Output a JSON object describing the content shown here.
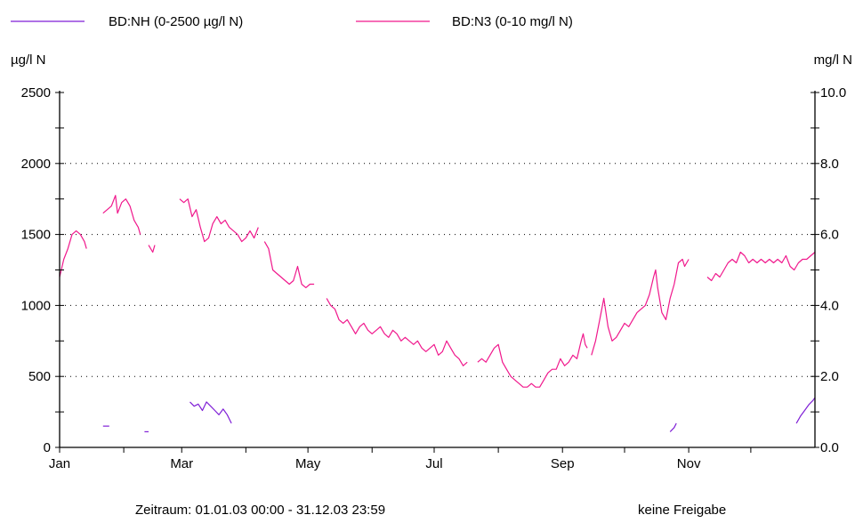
{
  "chart_data": {
    "type": "line",
    "legend": [
      {
        "label": "BD:NH (0-2500 µg/l N)",
        "color": "#7f1fd6"
      },
      {
        "label": "BD:N3 (0-10 mg/l N)",
        "color": "#f0188c"
      }
    ],
    "left_axis": {
      "unit": "µg/l N",
      "range": [
        0,
        2500
      ],
      "tick_labels": [
        "0",
        "500",
        "1000",
        "1500",
        "2000",
        "2500"
      ]
    },
    "right_axis": {
      "unit": "mg/l N",
      "range": [
        0,
        10
      ],
      "tick_labels": [
        "0.0",
        "2.0",
        "4.0",
        "6.0",
        "8.0",
        "10.0"
      ]
    },
    "x_axis": {
      "range": [
        1,
        366
      ],
      "ticks": [
        {
          "day": 1,
          "label": "Jan"
        },
        {
          "day": 60,
          "label": "Mar"
        },
        {
          "day": 121,
          "label": "May"
        },
        {
          "day": 182,
          "label": "Jul"
        },
        {
          "day": 244,
          "label": "Sep"
        },
        {
          "day": 305,
          "label": "Nov"
        }
      ]
    },
    "grid": "dotted horizontal",
    "series": [
      {
        "name": "BD:N3 (0-10 mg/l N)",
        "axis": "right",
        "color": "#f0188c",
        "segments": [
          [
            [
              1,
              4.8
            ],
            [
              3,
              5.3
            ],
            [
              5,
              5.6
            ],
            [
              7,
              6.0
            ],
            [
              9,
              6.1
            ],
            [
              11,
              6.0
            ],
            [
              13,
              5.8
            ],
            [
              14,
              5.6
            ]
          ],
          [
            [
              22,
              6.6
            ],
            [
              24,
              6.7
            ],
            [
              26,
              6.8
            ],
            [
              28,
              7.1
            ],
            [
              29,
              6.6
            ],
            [
              31,
              6.9
            ],
            [
              33,
              7.0
            ],
            [
              35,
              6.8
            ],
            [
              37,
              6.4
            ],
            [
              39,
              6.2
            ],
            [
              40,
              6.0
            ]
          ],
          [
            [
              44,
              5.7
            ],
            [
              46,
              5.5
            ],
            [
              47,
              5.7
            ]
          ],
          [
            [
              59,
              7.0
            ],
            [
              61,
              6.9
            ],
            [
              63,
              7.0
            ],
            [
              65,
              6.5
            ],
            [
              67,
              6.7
            ],
            [
              69,
              6.2
            ],
            [
              71,
              5.8
            ],
            [
              73,
              5.9
            ],
            [
              75,
              6.3
            ],
            [
              77,
              6.5
            ],
            [
              79,
              6.3
            ],
            [
              81,
              6.4
            ],
            [
              83,
              6.2
            ],
            [
              85,
              6.1
            ],
            [
              87,
              6.0
            ],
            [
              89,
              5.8
            ],
            [
              91,
              5.9
            ],
            [
              93,
              6.1
            ],
            [
              95,
              5.9
            ],
            [
              97,
              6.2
            ]
          ],
          [
            [
              100,
              5.8
            ],
            [
              102,
              5.6
            ],
            [
              104,
              5.0
            ],
            [
              106,
              4.9
            ],
            [
              108,
              4.8
            ],
            [
              110,
              4.7
            ],
            [
              112,
              4.6
            ],
            [
              114,
              4.7
            ],
            [
              116,
              5.1
            ],
            [
              118,
              4.6
            ],
            [
              120,
              4.5
            ],
            [
              122,
              4.6
            ],
            [
              124,
              4.6
            ]
          ],
          [
            [
              130,
              4.2
            ],
            [
              132,
              4.0
            ],
            [
              134,
              3.9
            ],
            [
              136,
              3.6
            ],
            [
              138,
              3.5
            ],
            [
              140,
              3.6
            ],
            [
              142,
              3.4
            ],
            [
              144,
              3.2
            ],
            [
              146,
              3.4
            ],
            [
              148,
              3.5
            ],
            [
              150,
              3.3
            ],
            [
              152,
              3.2
            ],
            [
              154,
              3.3
            ],
            [
              156,
              3.4
            ],
            [
              158,
              3.2
            ],
            [
              160,
              3.1
            ],
            [
              162,
              3.3
            ],
            [
              164,
              3.2
            ],
            [
              166,
              3.0
            ],
            [
              168,
              3.1
            ],
            [
              170,
              3.0
            ],
            [
              172,
              2.9
            ],
            [
              174,
              3.0
            ],
            [
              176,
              2.8
            ],
            [
              178,
              2.7
            ],
            [
              180,
              2.8
            ],
            [
              182,
              2.9
            ],
            [
              184,
              2.6
            ],
            [
              186,
              2.7
            ],
            [
              188,
              3.0
            ],
            [
              190,
              2.8
            ],
            [
              192,
              2.6
            ],
            [
              194,
              2.5
            ],
            [
              196,
              2.3
            ],
            [
              198,
              2.4
            ]
          ],
          [
            [
              203,
              2.4
            ],
            [
              205,
              2.5
            ],
            [
              207,
              2.4
            ],
            [
              209,
              2.6
            ],
            [
              211,
              2.8
            ],
            [
              213,
              2.9
            ],
            [
              215,
              2.4
            ],
            [
              217,
              2.2
            ],
            [
              219,
              2.0
            ],
            [
              221,
              1.9
            ],
            [
              223,
              1.8
            ],
            [
              225,
              1.7
            ],
            [
              227,
              1.7
            ],
            [
              229,
              1.8
            ],
            [
              231,
              1.7
            ],
            [
              233,
              1.7
            ],
            [
              235,
              1.9
            ],
            [
              237,
              2.1
            ],
            [
              239,
              2.2
            ],
            [
              241,
              2.2
            ],
            [
              243,
              2.5
            ],
            [
              245,
              2.3
            ],
            [
              247,
              2.4
            ],
            [
              249,
              2.6
            ],
            [
              251,
              2.5
            ],
            [
              253,
              3.0
            ],
            [
              254,
              3.2
            ],
            [
              255,
              2.9
            ],
            [
              256,
              2.8
            ]
          ],
          [
            [
              258,
              2.6
            ],
            [
              260,
              3.0
            ],
            [
              262,
              3.6
            ],
            [
              264,
              4.2
            ],
            [
              266,
              3.4
            ],
            [
              268,
              3.0
            ],
            [
              270,
              3.1
            ],
            [
              272,
              3.3
            ],
            [
              274,
              3.5
            ],
            [
              276,
              3.4
            ],
            [
              278,
              3.6
            ],
            [
              280,
              3.8
            ],
            [
              282,
              3.9
            ],
            [
              284,
              4.0
            ],
            [
              286,
              4.3
            ],
            [
              288,
              4.8
            ],
            [
              289,
              5.0
            ],
            [
              290,
              4.5
            ],
            [
              292,
              3.8
            ],
            [
              294,
              3.6
            ],
            [
              296,
              4.2
            ],
            [
              298,
              4.6
            ],
            [
              300,
              5.2
            ],
            [
              302,
              5.3
            ],
            [
              303,
              5.1
            ],
            [
              305,
              5.3
            ]
          ],
          [
            [
              314,
              4.8
            ],
            [
              316,
              4.7
            ],
            [
              318,
              4.9
            ],
            [
              320,
              4.8
            ],
            [
              322,
              5.0
            ],
            [
              324,
              5.2
            ],
            [
              326,
              5.3
            ],
            [
              328,
              5.2
            ],
            [
              330,
              5.5
            ],
            [
              332,
              5.4
            ],
            [
              334,
              5.2
            ],
            [
              336,
              5.3
            ],
            [
              338,
              5.2
            ],
            [
              340,
              5.3
            ],
            [
              342,
              5.2
            ],
            [
              344,
              5.3
            ],
            [
              346,
              5.2
            ],
            [
              348,
              5.3
            ],
            [
              350,
              5.2
            ],
            [
              352,
              5.4
            ],
            [
              354,
              5.1
            ],
            [
              356,
              5.0
            ],
            [
              358,
              5.2
            ],
            [
              360,
              5.3
            ],
            [
              362,
              5.3
            ],
            [
              364,
              5.4
            ],
            [
              366,
              5.5
            ]
          ]
        ]
      },
      {
        "name": "BD:NH (0-2500 µg/l N)",
        "axis": "left",
        "color": "#7f1fd6",
        "segments": [
          [
            [
              22,
              150
            ],
            [
              25,
              150
            ]
          ],
          [
            [
              42,
              110
            ],
            [
              44,
              110
            ]
          ],
          [
            [
              64,
              320
            ],
            [
              66,
              290
            ],
            [
              68,
              305
            ],
            [
              70,
              260
            ],
            [
              72,
              320
            ],
            [
              74,
              290
            ],
            [
              76,
              260
            ],
            [
              78,
              230
            ],
            [
              80,
              270
            ],
            [
              82,
              230
            ],
            [
              84,
              170
            ]
          ],
          [
            [
              296,
              110
            ],
            [
              298,
              140
            ],
            [
              299,
              170
            ]
          ],
          [
            [
              357,
              170
            ],
            [
              359,
              220
            ],
            [
              361,
              260
            ],
            [
              363,
              300
            ],
            [
              365,
              330
            ],
            [
              366,
              350
            ]
          ]
        ]
      }
    ],
    "footer": {
      "period": "Zeitraum: 01.01.03 00:00 - 31.12.03 23:59",
      "status": "keine Freigabe"
    }
  }
}
